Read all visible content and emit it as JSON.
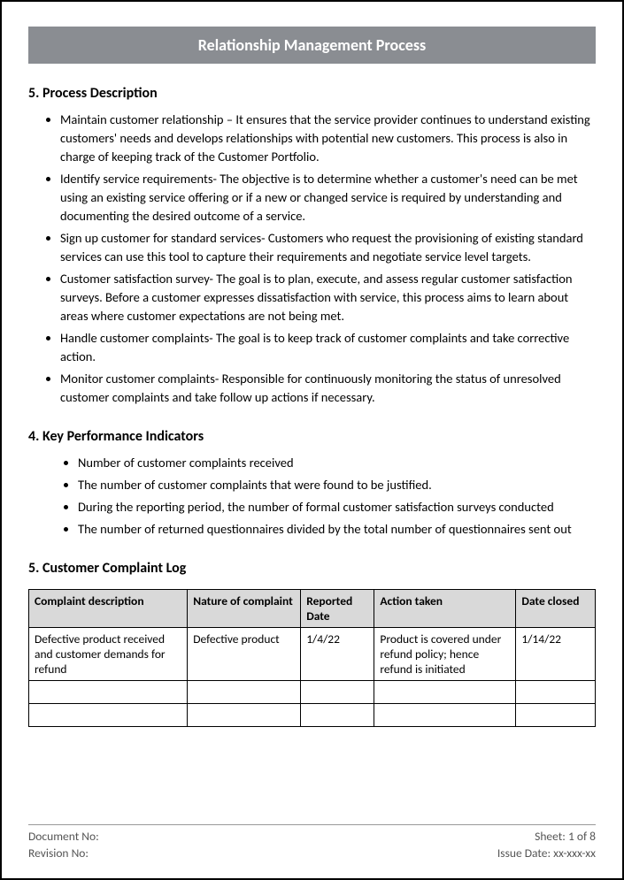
{
  "title": "Relationship Management Process",
  "sections": {
    "process_desc": {
      "heading": "5. Process Description",
      "items": [
        "Maintain customer relationship – It ensures that the service provider continues to understand existing customers' needs and develops relationships with potential new customers. This process is also in charge of keeping track of the Customer Portfolio.",
        "Identify service requirements- The objective is to determine whether a customer's need can be met using an existing service offering or if a new or changed service is required by understanding and documenting the desired outcome of a service.",
        "Sign up customer for standard services- Customers who request the provisioning of existing standard services can use this tool to capture their requirements and negotiate service level targets.",
        "Customer satisfaction survey- The goal is to plan, execute, and assess regular customer satisfaction surveys. Before a customer expresses dissatisfaction with service, this process aims to learn about areas where customer expectations are not being met.",
        "Handle customer complaints- The goal is to keep track of customer complaints and take corrective action.",
        "Monitor customer complaints- Responsible for continuously monitoring the status of unresolved customer complaints and take follow up actions if necessary."
      ]
    },
    "kpi": {
      "heading": "4. Key Performance Indicators",
      "items": [
        "Number of customer complaints received",
        "The number of customer complaints that were found to be justified.",
        "During the reporting period, the number of formal customer satisfaction surveys conducted",
        "The number of returned questionnaires divided by the total number of questionnaires sent out"
      ]
    },
    "complaint_log": {
      "heading": "5. Customer Complaint Log",
      "columns": [
        "Complaint description",
        "Nature of complaint",
        " Reported Date",
        "Action taken",
        "Date closed"
      ],
      "rows": [
        [
          "Defective product received and customer demands for refund",
          "Defective product",
          "1/4/22",
          "Product is covered under refund policy; hence refund is initiated",
          "1/14/22"
        ],
        [
          "",
          "",
          "",
          "",
          ""
        ],
        [
          "",
          "",
          "",
          "",
          ""
        ]
      ]
    }
  },
  "footer": {
    "doc_no_label": "Document No:",
    "sheet_label": "Sheet: 1 of 8",
    "rev_no_label": "Revision No:",
    "issue_date_label": "Issue Date: xx-xxx-xx"
  },
  "styling": {
    "banner_bg": "#8a8d92",
    "banner_fg": "#ffffff",
    "th_bg": "#d9d9d9",
    "border_color": "#000000",
    "footer_color": "#555555",
    "title_fontsize": 18,
    "heading_fontsize": 16,
    "body_fontsize": 14.5,
    "table_fontsize": 13.5
  }
}
